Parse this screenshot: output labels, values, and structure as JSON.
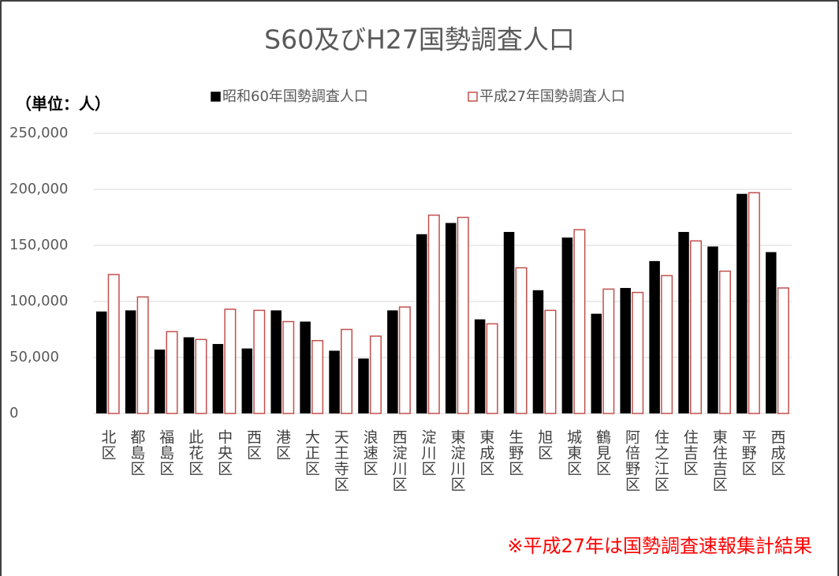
{
  "chart_data": {
    "type": "bar",
    "title": "S60及びH27国勢調査人口",
    "unit_label": "（単位：人）",
    "annotation": "※平成27年は国勢調査速報集計結果",
    "categories": [
      "北区",
      "都島区",
      "福島区",
      "此花区",
      "中央区",
      "西区",
      "港区",
      "大正区",
      "天王寺区",
      "浪速区",
      "西淀川区",
      "淀川区",
      "東淀川区",
      "東成区",
      "生野区",
      "旭区",
      "城東区",
      "鶴見区",
      "阿倍野区",
      "住之江区",
      "住吉区",
      "東住吉区",
      "平野区",
      "西成区"
    ],
    "series": [
      {
        "name": "昭和60年国勢調査人口",
        "color": "#000000",
        "values": [
          91000,
          92000,
          57000,
          68000,
          62000,
          58000,
          92000,
          82000,
          56000,
          49000,
          92000,
          160000,
          170000,
          84000,
          162000,
          110000,
          157000,
          89000,
          112000,
          136000,
          162000,
          149000,
          196000,
          144000
        ]
      },
      {
        "name": "平成27年国勢調査人口",
        "color": "#c0504d",
        "values": [
          124000,
          104000,
          73000,
          66000,
          93000,
          92000,
          82000,
          65000,
          75000,
          69000,
          95000,
          177000,
          175000,
          80000,
          130000,
          92000,
          164000,
          111000,
          108000,
          123000,
          154000,
          127000,
          197000,
          112000
        ]
      }
    ],
    "ylim": [
      0,
      250000
    ],
    "yticks": [
      0,
      {
        "value": 50000,
        "label": "50,000"
      },
      {
        "value": 100000,
        "label": "100,000"
      },
      {
        "value": 150000,
        "label": "150,000"
      },
      {
        "value": 200000,
        "label": "200,000"
      },
      {
        "value": 250000,
        "label": "250,000"
      }
    ],
    "grid": true
  }
}
